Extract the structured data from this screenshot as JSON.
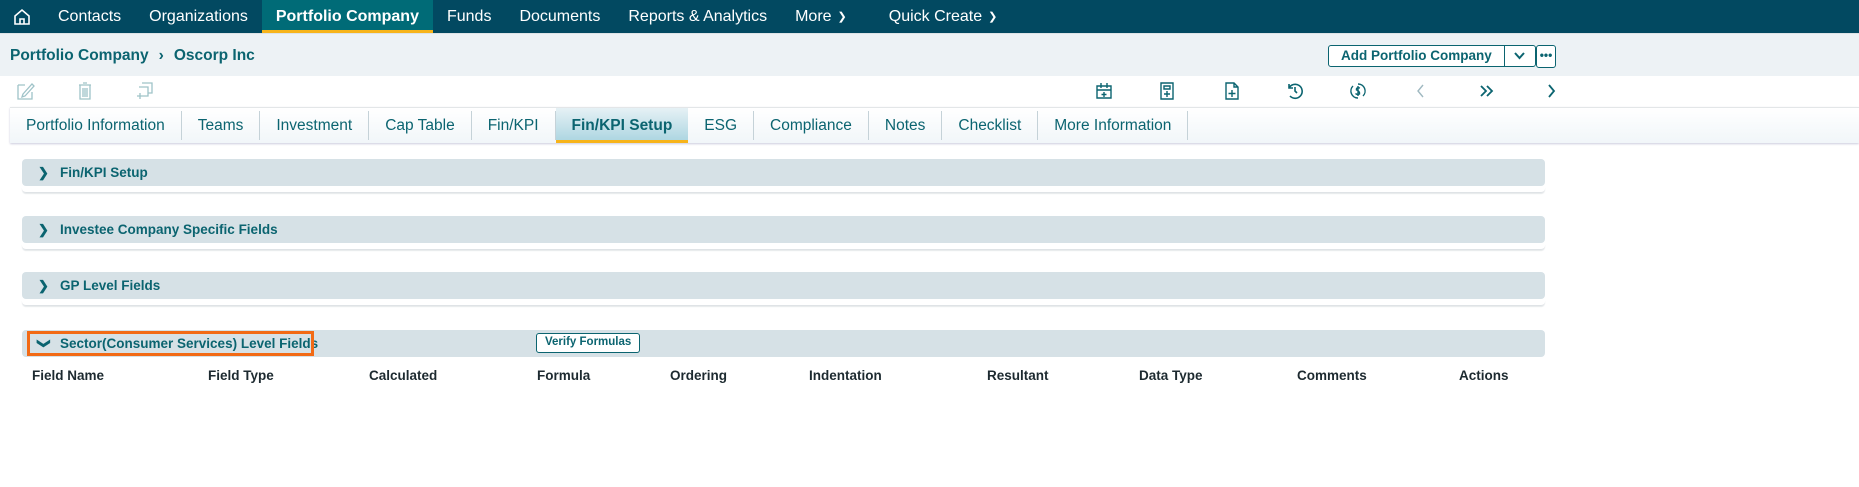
{
  "nav": {
    "items": [
      "Contacts",
      "Organizations",
      "Portfolio Company",
      "Funds",
      "Documents",
      "Reports & Analytics",
      "More",
      "Quick Create"
    ],
    "active": "Portfolio Company"
  },
  "breadcrumb": {
    "parent": "Portfolio Company",
    "current": "Oscorp Inc"
  },
  "actions": {
    "add_label": "Add Portfolio Company",
    "more": "•••"
  },
  "tabs": [
    "Portfolio Information",
    "Teams",
    "Investment",
    "Cap Table",
    "Fin/KPI",
    "Fin/KPI Setup",
    "ESG",
    "Compliance",
    "Notes",
    "Checklist",
    "More Information"
  ],
  "active_tab": "Fin/KPI Setup",
  "sections": [
    {
      "title": "Fin/KPI Setup",
      "expanded": false
    },
    {
      "title": "Investee Company Specific Fields",
      "expanded": false
    },
    {
      "title": "GP Level Fields",
      "expanded": false
    },
    {
      "title": "Sector(Consumer Services) Level Fields",
      "expanded": true
    }
  ],
  "verify_label": "Verify Formulas",
  "columns": [
    "Field Name",
    "Field Type",
    "Calculated",
    "Formula",
    "Ordering",
    "Indentation",
    "Resultant",
    "Data Type",
    "Comments",
    "Actions"
  ],
  "colors": {
    "nav": "#024961",
    "accent": "#f7b41b",
    "brand": "#0b6470",
    "highlight": "#f26a15"
  }
}
